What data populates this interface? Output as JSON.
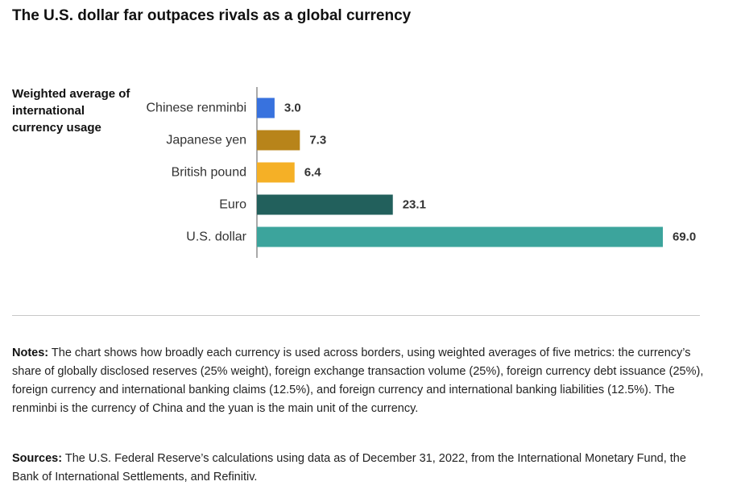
{
  "title": "The U.S. dollar far outpaces rivals as a global currency",
  "notes": {
    "label": "Notes:",
    "text": "The chart shows how broadly each currency is used across borders, using weighted averages of five metrics: the currency’s share of globally disclosed reserves (25% weight), foreign exchange transaction volume (25%), foreign currency debt issuance (25%), foreign currency and international banking claims (12.5%), and foreign currency and international banking liabilities (12.5%). The renminbi is the currency of China and the yuan is the main unit of the currency."
  },
  "sources": {
    "label": "Sources:",
    "text": "The U.S. Federal Reserve’s calculations using data as of December 31, 2022, from the International Monetary Fund, the Bank of International Settlements, and Refinitiv."
  },
  "chart_data": {
    "type": "bar",
    "orientation": "horizontal",
    "ylabel": "Weighted average of international currency usage",
    "categories": [
      "Chinese renminbi",
      "Japanese yen",
      "British pound",
      "Euro",
      "U.S. dollar"
    ],
    "values": [
      3.0,
      7.3,
      6.4,
      23.1,
      69.0
    ],
    "value_labels": [
      "3.0",
      "7.3",
      "6.4",
      "23.1",
      "69.0"
    ],
    "colors": [
      "#3872de",
      "#b8841a",
      "#f5b026",
      "#22605c",
      "#3ca49c"
    ],
    "xlim": [
      0,
      69.0
    ],
    "grid": false,
    "legend": "none"
  }
}
